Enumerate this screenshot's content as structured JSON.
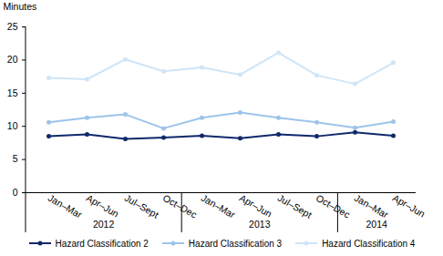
{
  "chart_data": {
    "type": "line",
    "y_label": "Minutes",
    "categories": [
      "Jan–Mar",
      "Apr–Jun",
      "Jul–Sept",
      "Oct–Dec",
      "Jan–Mar",
      "Apr–Jun",
      "Jul–Sept",
      "Oct–Dec",
      "Jan–Mar",
      "Apr–Jun"
    ],
    "groups": [
      {
        "label": "2012",
        "count": 4
      },
      {
        "label": "2013",
        "count": 4
      },
      {
        "label": "2014",
        "count": 2
      }
    ],
    "series": [
      {
        "name": "Hazard Classification 2",
        "color": "#10296b",
        "values": [
          8.5,
          8.8,
          8.1,
          8.3,
          8.6,
          8.2,
          8.8,
          8.5,
          9.1,
          8.6
        ]
      },
      {
        "name": "Hazard Classification 3",
        "color": "#9ec4ea",
        "values": [
          10.6,
          11.3,
          11.8,
          9.7,
          11.3,
          12.1,
          11.3,
          10.6,
          9.8,
          10.7
        ]
      },
      {
        "name": "Hazard Classification 4",
        "color": "#cfe5f7",
        "values": [
          17.3,
          17.1,
          20.1,
          18.3,
          18.9,
          17.8,
          21.1,
          17.7,
          16.4,
          19.6
        ]
      }
    ],
    "ylim": [
      0,
      25
    ],
    "yticks": [
      0,
      5,
      10,
      15,
      20,
      25
    ],
    "grid": false,
    "legend": "bottom",
    "marker": "circle"
  }
}
